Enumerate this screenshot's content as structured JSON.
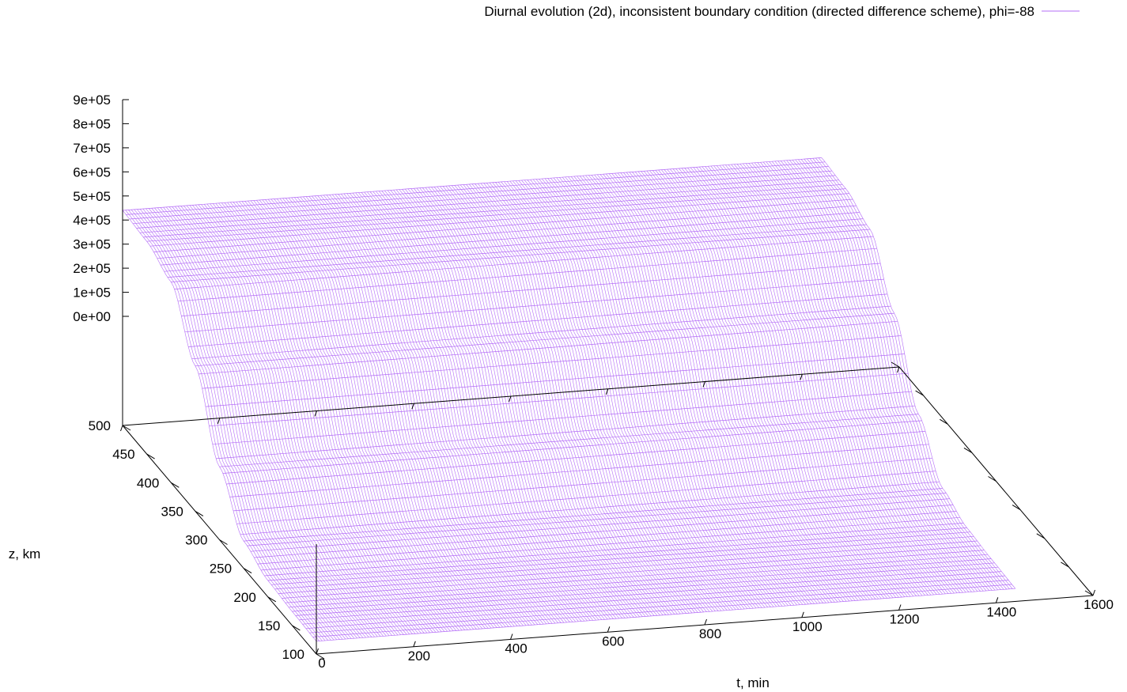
{
  "chart_data": {
    "type": "surface",
    "legend": {
      "position": "top-right",
      "entries": [
        {
          "label": "Diurnal evolution (2d), inconsistent boundary condition (directed difference scheme), phi=-88",
          "color": "#b46cf7"
        }
      ]
    },
    "x_axis": {
      "label": "t, min",
      "range": [
        0,
        1600
      ],
      "ticks": [
        "0",
        "200",
        "400",
        "600",
        "800",
        "1000",
        "1200",
        "1400",
        "1600"
      ]
    },
    "y_axis": {
      "label": "z, km",
      "range": [
        100,
        500
      ],
      "ticks": [
        "100",
        "150",
        "200",
        "250",
        "300",
        "350",
        "400",
        "450",
        "500"
      ]
    },
    "z_axis": {
      "label": "",
      "range": [
        0,
        900000
      ],
      "ticks": [
        "0e+00",
        "1e+05",
        "2e+05",
        "3e+05",
        "4e+05",
        "5e+05",
        "6e+05",
        "7e+05",
        "8e+05",
        "9e+05"
      ]
    },
    "surface": {
      "description_free": true,
      "t_range": [
        0,
        1440
      ],
      "z_range": [
        100,
        500
      ],
      "value_at_z": [
        {
          "z": 100,
          "value": -400000
        },
        {
          "z": 150,
          "value": -395000
        },
        {
          "z": 200,
          "value": -385000
        },
        {
          "z": 250,
          "value": -340000
        },
        {
          "z": 300,
          "value": -150000
        },
        {
          "z": 350,
          "value": 150000
        },
        {
          "z": 400,
          "value": 380000
        },
        {
          "z": 450,
          "value": 430000
        },
        {
          "z": 500,
          "value": 440000
        }
      ]
    },
    "grid": false
  }
}
